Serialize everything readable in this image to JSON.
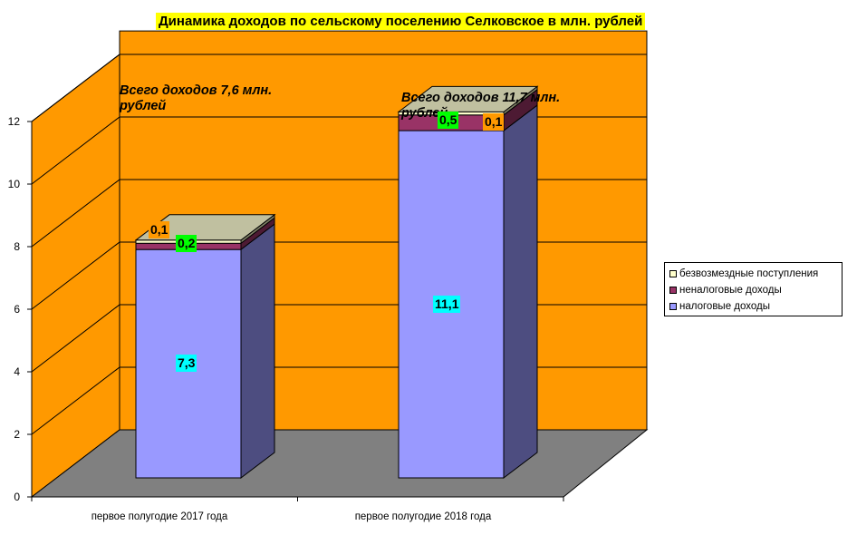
{
  "chart_data": {
    "type": "bar",
    "stacked": true,
    "three_d": true,
    "title": "Динамика доходов по сельскому поселению Селковское в млн. рублей",
    "categories": [
      "первое полугодие 2017 года",
      "первое полугодие 2018 года"
    ],
    "series": [
      {
        "name": "налоговые доходы",
        "values": [
          7.3,
          11.1
        ],
        "labels": [
          "7,3",
          "11,1"
        ],
        "color": "#9999ff",
        "label_bg": "#00ffff"
      },
      {
        "name": "неналоговые доходы",
        "values": [
          0.2,
          0.5
        ],
        "labels": [
          "0,2",
          "0,5"
        ],
        "color": "#993366",
        "label_bg": "#00ff00"
      },
      {
        "name": "безвозмездные поступления",
        "values": [
          0.1,
          0.1
        ],
        "labels": [
          "0,1",
          "0,1"
        ],
        "color": "#ffffcc",
        "label_bg": "#ff9900"
      }
    ],
    "annotations": [
      {
        "line1": "Всего доходов 7,6 млн.",
        "line2": "рублей"
      },
      {
        "line1": "Всего доходов 11,7 млн.",
        "line2": "рублей"
      }
    ],
    "ylim": [
      0,
      12
    ],
    "yticks": [
      "0",
      "2",
      "4",
      "6",
      "8",
      "10",
      "12"
    ],
    "grid": true,
    "legend_position": "right",
    "colors": {
      "wall": "#ff9900",
      "floor": "#808080",
      "title_bg": "#ffff00"
    }
  }
}
